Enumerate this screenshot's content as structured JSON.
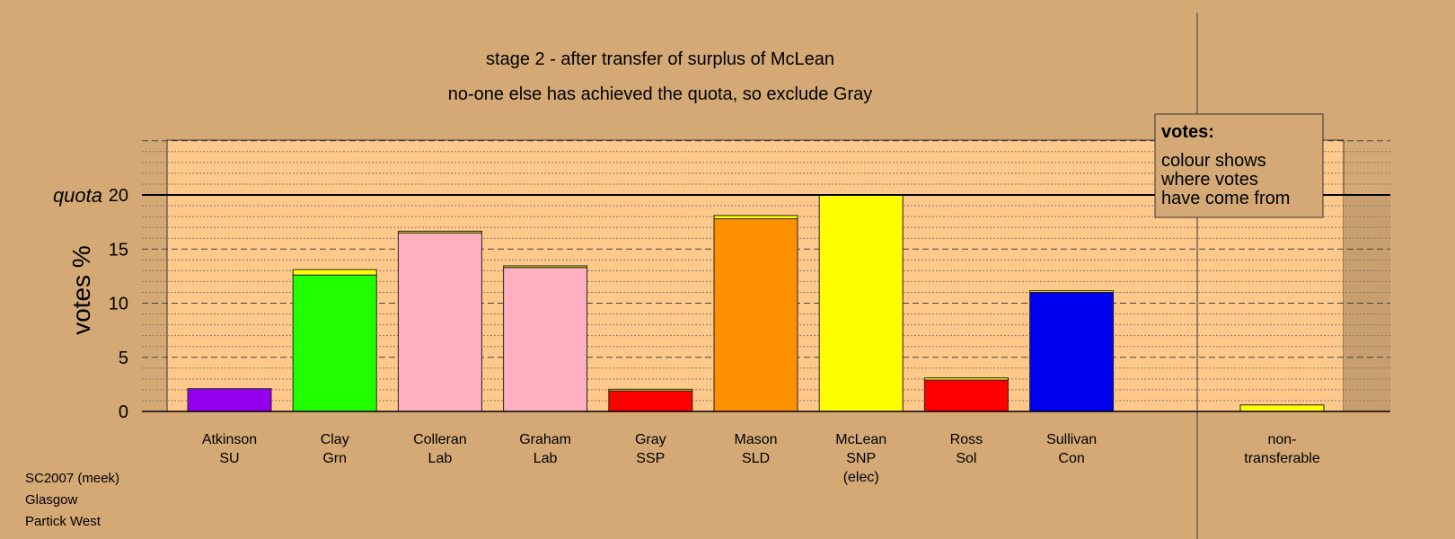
{
  "chart_data": {
    "type": "bar",
    "title": "stage 2 - after transfer of surplus of McLean",
    "subtitle": "no-one else has achieved the quota, so exclude Gray",
    "ylabel": "votes %",
    "ylim": [
      0,
      25
    ],
    "yticks": [
      0,
      5,
      10,
      15,
      20
    ],
    "quota": 20,
    "quota_label": "quota",
    "grid": true,
    "candidates": [
      {
        "name": "Atkinson",
        "party": "SU",
        "extra": "",
        "base": 2.1,
        "base_color": "#9400ee",
        "transfer": 0.0
      },
      {
        "name": "Clay",
        "party": "Grn",
        "extra": "",
        "base": 12.6,
        "base_color": "#22ff00",
        "transfer": 0.5
      },
      {
        "name": "Colleran",
        "party": "Lab",
        "extra": "",
        "base": 16.5,
        "base_color": "#ffb0c0",
        "transfer": 0.15
      },
      {
        "name": "Graham",
        "party": "Lab",
        "extra": "",
        "base": 13.3,
        "base_color": "#ffb0c0",
        "transfer": 0.15
      },
      {
        "name": "Gray",
        "party": "SSP",
        "extra": "",
        "base": 1.9,
        "base_color": "#ff0000",
        "transfer": 0.15
      },
      {
        "name": "Mason",
        "party": "SLD",
        "extra": "",
        "base": 17.8,
        "base_color": "#ff9000",
        "transfer": 0.3
      },
      {
        "name": "McLean",
        "party": "SNP",
        "extra": "(elec)",
        "base": 20.0,
        "base_color": "#ffff00",
        "transfer": 0.0
      },
      {
        "name": "Ross",
        "party": "Sol",
        "extra": "",
        "base": 2.9,
        "base_color": "#ff0000",
        "transfer": 0.2
      },
      {
        "name": "Sullivan",
        "party": "Con",
        "extra": "",
        "base": 11.0,
        "base_color": "#0000ee",
        "transfer": 0.15
      }
    ],
    "non_transferable": {
      "line1": "non-",
      "line2": "transferable",
      "value": 0.6,
      "color": "#ffff00"
    },
    "transfer_color": "#ffff00",
    "legend": {
      "title": "votes:",
      "lines": [
        "colour shows",
        "where votes",
        "have come from"
      ]
    }
  },
  "footer": [
    "SC2007 (meek)",
    "Glasgow",
    "Partick West"
  ]
}
